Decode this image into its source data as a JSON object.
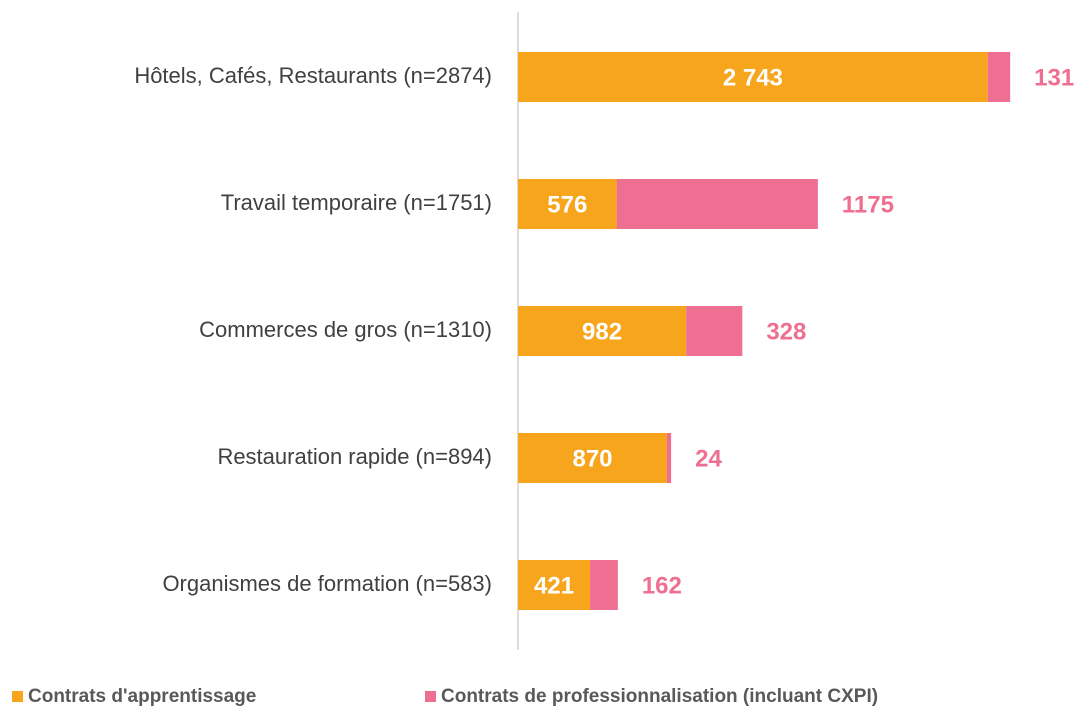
{
  "chart_data": {
    "type": "stacked-barh",
    "categories": [
      "Hôtels, Cafés, Restaurants (n=2874)",
      "Travail temporaire (n=1751)",
      "Commerces de gros  (n=1310)",
      "Restauration rapide  (n=894)",
      "Organismes de formation  (n=583)"
    ],
    "series": [
      {
        "name": "Contrats d'apprentissage",
        "color": "#f7a51c",
        "values": [
          2743,
          576,
          982,
          870,
          421
        ],
        "value_labels": [
          "2 743",
          "576",
          "982",
          "870",
          "421"
        ]
      },
      {
        "name": "Contrats de professionnalisation (incluant CXPI)",
        "color": "#ee6f91",
        "values": [
          131,
          1175,
          328,
          24,
          162
        ]
      }
    ],
    "xlim": [
      0,
      3200
    ]
  }
}
